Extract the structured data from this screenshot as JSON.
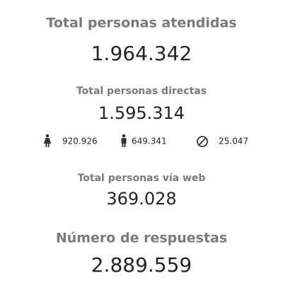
{
  "kpis": [
    {
      "label": "Total personas atendidas",
      "value": "1.964.342"
    },
    {
      "label": "Total personas directas",
      "value": "1.595.314",
      "breakdown": [
        "920.926",
        "649.341",
        "25.047"
      ]
    },
    {
      "label": "Total personas vía web",
      "value": "369.028"
    },
    {
      "label": "Número de respuestas",
      "value": "2.889.559"
    }
  ]
}
